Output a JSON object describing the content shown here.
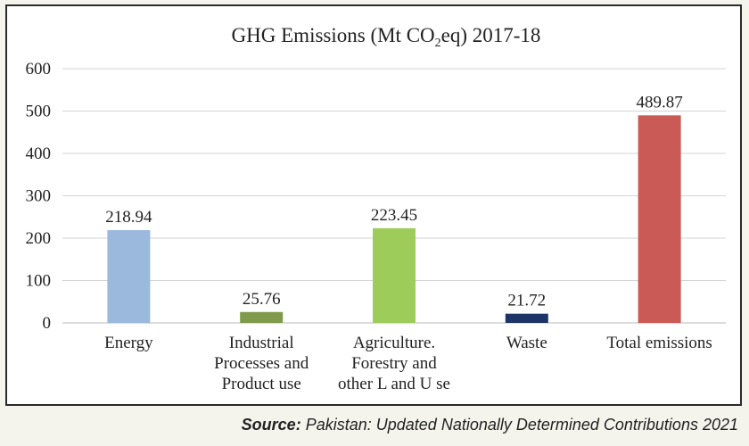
{
  "chart_data": {
    "type": "bar",
    "title_parts": {
      "before": "GHG Emissions (Mt CO",
      "sub": "2",
      "after": "eq) 2017-18"
    },
    "categories": [
      [
        "Energy"
      ],
      [
        "Industrial",
        "Processes and",
        "Product use"
      ],
      [
        "Agriculture.",
        "Forestry and",
        "other L and U se"
      ],
      [
        "Waste"
      ],
      [
        "Total emissions"
      ]
    ],
    "values": [
      218.94,
      25.76,
      223.45,
      21.72,
      489.87
    ],
    "value_labels": [
      "218.94",
      "25.76",
      "223.45",
      "21.72",
      "489.87"
    ],
    "colors": [
      "#9bb9dc",
      "#7e9a4a",
      "#9dcc5a",
      "#1f3466",
      "#c95a55"
    ],
    "ylim": [
      0,
      600
    ],
    "yticks": [
      "0",
      "100",
      "200",
      "300",
      "400",
      "500",
      "600"
    ],
    "grid": true,
    "legend": "none"
  },
  "source": {
    "label": "Source:",
    "text": "Pakistan: Updated Nationally Determined Contributions 2021"
  }
}
